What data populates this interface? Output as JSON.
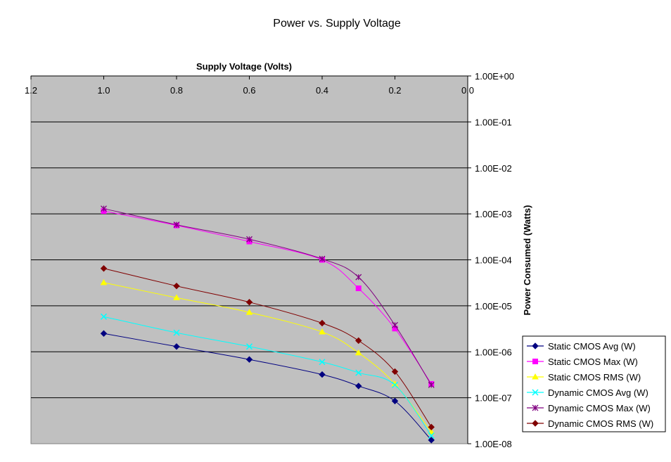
{
  "chart_data": {
    "type": "line",
    "title": "Power vs. Supply Voltage",
    "xlabel": "Supply Voltage (Volts)",
    "ylabel": "Power Consumed (Watts)",
    "x_axis_position": "top",
    "x_reversed": true,
    "xlim": [
      0.0,
      1.2
    ],
    "x_ticks": [
      {
        "value": 1.2,
        "label": "1.2"
      },
      {
        "value": 1.0,
        "label": "1.0"
      },
      {
        "value": 0.8,
        "label": "0.8"
      },
      {
        "value": 0.6,
        "label": "0.6"
      },
      {
        "value": 0.4,
        "label": "0.4"
      },
      {
        "value": 0.2,
        "label": "0.2"
      },
      {
        "value": 0.0,
        "label": "0.0"
      }
    ],
    "y_axis_position": "right",
    "y_scale": "log",
    "ylim": [
      1e-08,
      1
    ],
    "y_ticks": [
      {
        "value": 1,
        "label": "1.00E+00"
      },
      {
        "value": 0.1,
        "label": "1.00E-01"
      },
      {
        "value": 0.01,
        "label": "1.00E-02"
      },
      {
        "value": 0.001,
        "label": "1.00E-03"
      },
      {
        "value": 0.0001,
        "label": "1.00E-04"
      },
      {
        "value": 1e-05,
        "label": "1.00E-05"
      },
      {
        "value": 1e-06,
        "label": "1.00E-06"
      },
      {
        "value": 1e-07,
        "label": "1.00E-07"
      },
      {
        "value": 1e-08,
        "label": "1.00E-08"
      }
    ],
    "grid": "horizontal",
    "plot_background": "#c0c0c0",
    "legend_position": "bottom-right",
    "x": [
      1.0,
      0.8,
      0.6,
      0.4,
      0.3,
      0.2,
      0.1
    ],
    "series": [
      {
        "name": "Static CMOS Avg (W)",
        "color": "#000080",
        "marker": "diamond",
        "values": [
          2.5e-06,
          1.3e-06,
          6.8e-07,
          3.2e-07,
          1.8e-07,
          8.5e-08,
          1.2e-08
        ]
      },
      {
        "name": "Static CMOS Max (W)",
        "color": "#ff00ff",
        "marker": "square",
        "values": [
          0.00115,
          0.00056,
          0.00025,
          0.0001,
          2.4e-05,
          3.2e-06,
          2e-07
        ]
      },
      {
        "name": "Static CMOS RMS (W)",
        "color": "#ffff00",
        "marker": "triangle",
        "values": [
          3.2e-05,
          1.5e-05,
          7.2e-06,
          2.7e-06,
          9.5e-07,
          2e-07,
          1.8e-08
        ]
      },
      {
        "name": "Dynamic CMOS Avg (W)",
        "color": "#00ffff",
        "marker": "x",
        "values": [
          5.8e-06,
          2.6e-06,
          1.3e-06,
          6e-07,
          3.5e-07,
          1.9e-07,
          1.5e-08
        ]
      },
      {
        "name": "Dynamic CMOS Max (W)",
        "color": "#800080",
        "marker": "star",
        "values": [
          0.0013,
          0.00058,
          0.00028,
          0.000105,
          4.2e-05,
          3.8e-06,
          1.9e-07
        ]
      },
      {
        "name": "Dynamic CMOS RMS (W)",
        "color": "#800000",
        "marker": "diamond",
        "values": [
          6.5e-05,
          2.7e-05,
          1.2e-05,
          4.2e-06,
          1.75e-06,
          3.7e-07,
          2.3e-08
        ]
      }
    ]
  }
}
